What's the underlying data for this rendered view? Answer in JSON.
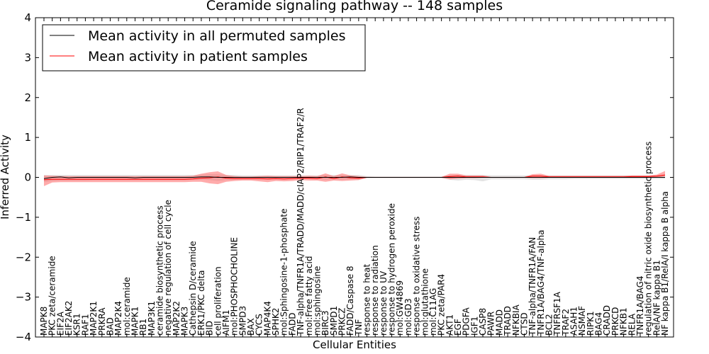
{
  "chart_data": {
    "type": "line",
    "title": "Ceramide signaling pathway -- 148 samples",
    "xlabel": "Cellular Entities",
    "ylabel": "Inferred Activity",
    "ylim": [
      -4,
      4
    ],
    "yticks": [
      -4,
      -3,
      -2,
      -1,
      0,
      1,
      2,
      3,
      4
    ],
    "ytick_labels": [
      "−4",
      "−3",
      "−2",
      "−1",
      "0",
      "1",
      "2",
      "3",
      "4"
    ],
    "grid": false,
    "legend_position": "top-left",
    "categories": [
      "MAPK8",
      "PKC zeta/ceramide",
      "EIF2A",
      "EIF2AK2",
      "KSR1",
      "RAF1",
      "MAP2K1",
      "PRKRA",
      "BAD",
      "MAP2K4",
      "mol:ceramide",
      "MAPK1",
      "RB1",
      "MAP3K1",
      "ceramide biosynthetic process",
      "negative regulation of cell cycle",
      "MAP2K2",
      "MAPK3",
      "Cathepsin D/ceramide",
      "ERK1/PKC delta",
      "BID",
      "cell proliferation",
      "AIFM1",
      "mol:PHOSPHOCHOLINE",
      "SMPD3",
      "BAX",
      "CYCS",
      "MAP4K4",
      "SPHK2",
      "mol:Sphingosine-1-phosphate",
      "FADD",
      "TNF-alpha/TNFR1A/TRADD/MADD/cIAP2/RIP1/TRAF2/R",
      "mol:Free fatty acid",
      "mol:sphingosine",
      "BIRC3",
      "SMPD1",
      "PRKCZ",
      "FADD/Caspase 8",
      "TNF",
      "response to heat",
      "response to radiation",
      "response to UV",
      "response to hydrogen peroxide",
      "mol:GW4869",
      "mol:GD3",
      "response to oxidative stress",
      "mol:glutathione",
      "mol:C11AG",
      "PKC zeta/PAR4",
      "AKT1",
      "EGF",
      "PDGFA",
      "IGF1",
      "CASP8",
      "PAWR",
      "MADD",
      "TRADD",
      "NFKBIA",
      "CTSD",
      "TNF-alpha/TNFR1A/FAN",
      "TNFR1A/BAG4/TNF-alpha",
      "BCL2",
      "TNFRSF1A",
      "TRAF2",
      "ASAH1",
      "NSMAF",
      "RIPK1",
      "BAG4",
      "CRADD",
      "PRKCD",
      "NFKB1",
      "RELA",
      "TNFR1A/BAG4",
      "regulation of nitric oxide biosynthetic process",
      "RelA/NF kappa B1",
      "NF kappa B1/RelA/I kappa B alpha"
    ],
    "series": [
      {
        "name": "Mean activity in all permuted samples",
        "color": "#000000",
        "values": [
          -0.03,
          0.0,
          0.01,
          -0.01,
          0.0,
          0.0,
          0.0,
          0.0,
          0.0,
          0.0,
          0.0,
          -0.01,
          0.0,
          0.0,
          0.0,
          0.0,
          0.0,
          0.0,
          0.0,
          0.01,
          0.01,
          0.0,
          0.0,
          0.0,
          0.0,
          0.0,
          0.0,
          0.0,
          0.0,
          0.0,
          0.0,
          0.0,
          0.0,
          0.0,
          0.0,
          0.0,
          0.0,
          0.01,
          0.0,
          0.0,
          0.0,
          0.0,
          0.0,
          0.0,
          0.0,
          0.0,
          0.0,
          0.0,
          0.0,
          0.0,
          0.0,
          0.0,
          0.0,
          0.0,
          0.0,
          0.0,
          0.0,
          0.0,
          0.0,
          0.0,
          0.0,
          0.0,
          0.0,
          0.0,
          0.0,
          0.0,
          0.0,
          0.0,
          0.0,
          0.0,
          0.0,
          0.0,
          0.0,
          0.0,
          0.0,
          0.0
        ],
        "band_low": [
          -0.12,
          -0.09,
          -0.08,
          -0.08,
          -0.08,
          -0.08,
          -0.07,
          -0.07,
          -0.07,
          -0.07,
          -0.07,
          -0.07,
          -0.07,
          -0.07,
          -0.07,
          -0.07,
          -0.07,
          -0.07,
          -0.06,
          -0.06,
          -0.07,
          -0.09,
          -0.07,
          -0.06,
          -0.05,
          -0.05,
          -0.05,
          -0.05,
          -0.05,
          -0.05,
          -0.04,
          -0.04,
          -0.04,
          -0.04,
          -0.06,
          -0.05,
          -0.06,
          -0.05,
          -0.06,
          -0.02,
          -0.02,
          -0.02,
          -0.02,
          -0.02,
          -0.02,
          -0.02,
          -0.02,
          -0.02,
          -0.02,
          -0.06,
          -0.08,
          -0.06,
          -0.07,
          -0.1,
          -0.05,
          -0.05,
          -0.05,
          -0.05,
          -0.05,
          -0.06,
          -0.06,
          -0.05,
          -0.05,
          -0.05,
          -0.04,
          -0.04,
          -0.04,
          -0.04,
          -0.04,
          -0.04,
          -0.04,
          -0.04,
          -0.04,
          -0.04,
          -0.04,
          -0.04
        ],
        "band_high": [
          0.06,
          0.06,
          0.06,
          0.06,
          0.06,
          0.06,
          0.06,
          0.06,
          0.06,
          0.06,
          0.06,
          0.06,
          0.06,
          0.06,
          0.06,
          0.06,
          0.06,
          0.06,
          0.06,
          0.07,
          0.08,
          0.08,
          0.06,
          0.06,
          0.05,
          0.05,
          0.05,
          0.05,
          0.05,
          0.05,
          0.05,
          0.05,
          0.05,
          0.05,
          0.06,
          0.06,
          0.06,
          0.06,
          0.06,
          0.03,
          0.02,
          0.02,
          0.02,
          0.02,
          0.02,
          0.02,
          0.02,
          0.02,
          0.02,
          0.06,
          0.06,
          0.06,
          0.06,
          0.06,
          0.05,
          0.05,
          0.05,
          0.05,
          0.05,
          0.05,
          0.05,
          0.05,
          0.05,
          0.05,
          0.05,
          0.05,
          0.05,
          0.05,
          0.05,
          0.05,
          0.05,
          0.05,
          0.05,
          0.05,
          0.05,
          0.05
        ]
      },
      {
        "name": "Mean activity in patient samples",
        "color": "#ff0000",
        "values": [
          -0.06,
          -0.05,
          -0.05,
          -0.05,
          -0.05,
          -0.05,
          -0.05,
          -0.05,
          -0.05,
          -0.05,
          -0.05,
          -0.05,
          -0.05,
          -0.05,
          -0.05,
          -0.05,
          -0.05,
          -0.05,
          -0.04,
          -0.02,
          -0.01,
          0.01,
          -0.02,
          -0.03,
          -0.03,
          -0.03,
          -0.03,
          -0.04,
          -0.03,
          -0.04,
          -0.03,
          -0.02,
          -0.02,
          -0.03,
          0.01,
          -0.03,
          0.01,
          -0.01,
          -0.02,
          0.0,
          0.0,
          0.0,
          0.0,
          0.0,
          0.0,
          0.0,
          0.0,
          0.0,
          0.0,
          0.02,
          0.03,
          0.01,
          0.01,
          0.01,
          0.0,
          0.0,
          0.0,
          0.0,
          0.0,
          0.03,
          0.03,
          0.01,
          0.01,
          0.01,
          0.01,
          0.01,
          0.01,
          0.01,
          0.01,
          0.01,
          0.01,
          0.02,
          0.02,
          0.02,
          0.03,
          0.06
        ],
        "band_low": [
          -0.22,
          -0.13,
          -0.12,
          -0.12,
          -0.12,
          -0.12,
          -0.12,
          -0.12,
          -0.12,
          -0.12,
          -0.12,
          -0.12,
          -0.12,
          -0.12,
          -0.12,
          -0.12,
          -0.12,
          -0.12,
          -0.11,
          -0.11,
          -0.15,
          -0.17,
          -0.11,
          -0.09,
          -0.08,
          -0.08,
          -0.1,
          -0.12,
          -0.09,
          -0.1,
          -0.09,
          -0.07,
          -0.08,
          -0.08,
          -0.11,
          -0.08,
          -0.09,
          -0.08,
          -0.07,
          -0.01,
          -0.01,
          -0.01,
          -0.01,
          -0.01,
          -0.01,
          -0.01,
          -0.01,
          -0.01,
          -0.01,
          -0.05,
          -0.03,
          -0.02,
          -0.02,
          -0.01,
          -0.01,
          -0.01,
          -0.01,
          -0.01,
          -0.01,
          -0.02,
          -0.02,
          -0.01,
          -0.01,
          -0.01,
          -0.01,
          -0.01,
          -0.01,
          -0.01,
          -0.01,
          -0.01,
          -0.01,
          -0.01,
          -0.01,
          -0.01,
          0.0,
          0.02
        ],
        "band_high": [
          0.05,
          0.04,
          0.03,
          0.03,
          0.03,
          0.03,
          0.03,
          0.03,
          0.03,
          0.03,
          0.03,
          0.03,
          0.03,
          0.03,
          0.03,
          0.03,
          0.03,
          0.03,
          0.04,
          0.09,
          0.13,
          0.15,
          0.06,
          0.03,
          0.02,
          0.02,
          0.03,
          0.04,
          0.03,
          0.03,
          0.03,
          0.03,
          0.04,
          0.03,
          0.1,
          0.03,
          0.1,
          0.05,
          0.03,
          0.01,
          0.01,
          0.01,
          0.01,
          0.01,
          0.01,
          0.01,
          0.01,
          0.01,
          0.01,
          0.09,
          0.09,
          0.05,
          0.05,
          0.05,
          0.01,
          0.01,
          0.01,
          0.01,
          0.01,
          0.08,
          0.09,
          0.04,
          0.04,
          0.04,
          0.04,
          0.04,
          0.04,
          0.04,
          0.04,
          0.04,
          0.04,
          0.05,
          0.05,
          0.05,
          0.07,
          0.16
        ]
      }
    ]
  }
}
